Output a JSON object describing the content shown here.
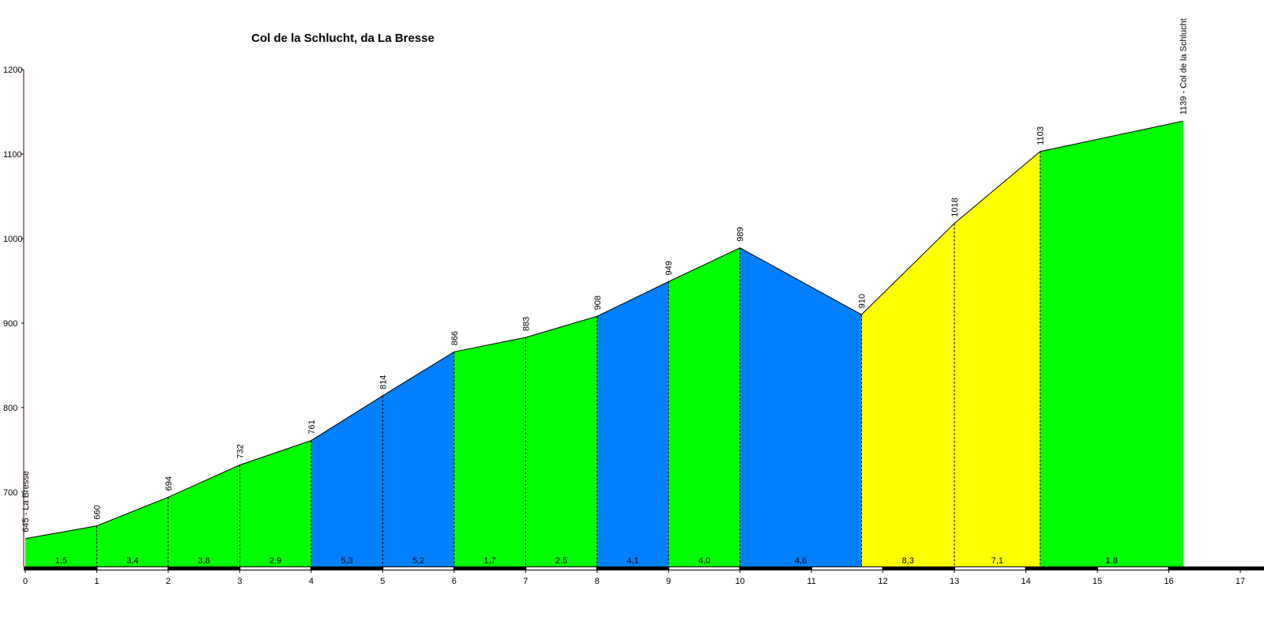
{
  "chart_data": {
    "type": "area",
    "title": "Col de la Schlucht, da La Bresse",
    "x": [
      0,
      1,
      2,
      3,
      4,
      5,
      6,
      7,
      8,
      9,
      10,
      11.7,
      13,
      14.2,
      16.2
    ],
    "values": [
      645,
      660,
      694,
      732,
      761,
      814,
      866,
      883,
      908,
      949,
      989,
      910,
      1018,
      1103,
      1139
    ],
    "value_labels": [
      "645 - La Bresse",
      "660",
      "694",
      "732",
      "761",
      "814",
      "866",
      "883",
      "908",
      "949",
      "989",
      "910",
      "1018",
      "1103",
      "1139 - Col de la Schlucht"
    ],
    "gradients": {
      "values": [
        1.5,
        3.4,
        3.8,
        2.9,
        5.3,
        5.2,
        1.7,
        2.5,
        4.1,
        4.0,
        4.6,
        8.3,
        7.1,
        1.8
      ],
      "value_labels": [
        "1,5",
        "3,4",
        "3,8",
        "2,9",
        "5,3",
        "5,2",
        "1,7",
        "2,5",
        "4,1",
        "4,0",
        "4,6",
        "8,3",
        "7,1",
        "1,8"
      ],
      "colors": [
        "#00ff00",
        "#00ff00",
        "#00ff00",
        "#00ff00",
        "#0080ff",
        "#0080ff",
        "#00ff00",
        "#00ff00",
        "#0080ff",
        "#00ff00",
        "#0080ff",
        "#ffff00",
        "#ffff00",
        "#00ff00"
      ]
    },
    "xlim": [
      0,
      17
    ],
    "xticks": [
      0,
      1,
      2,
      3,
      4,
      5,
      6,
      7,
      8,
      9,
      10,
      11,
      12,
      13,
      14,
      15,
      16,
      17
    ],
    "ylim": [
      612,
      1200
    ],
    "yticks": [
      700,
      800,
      900,
      1000,
      1100,
      1200
    ]
  }
}
